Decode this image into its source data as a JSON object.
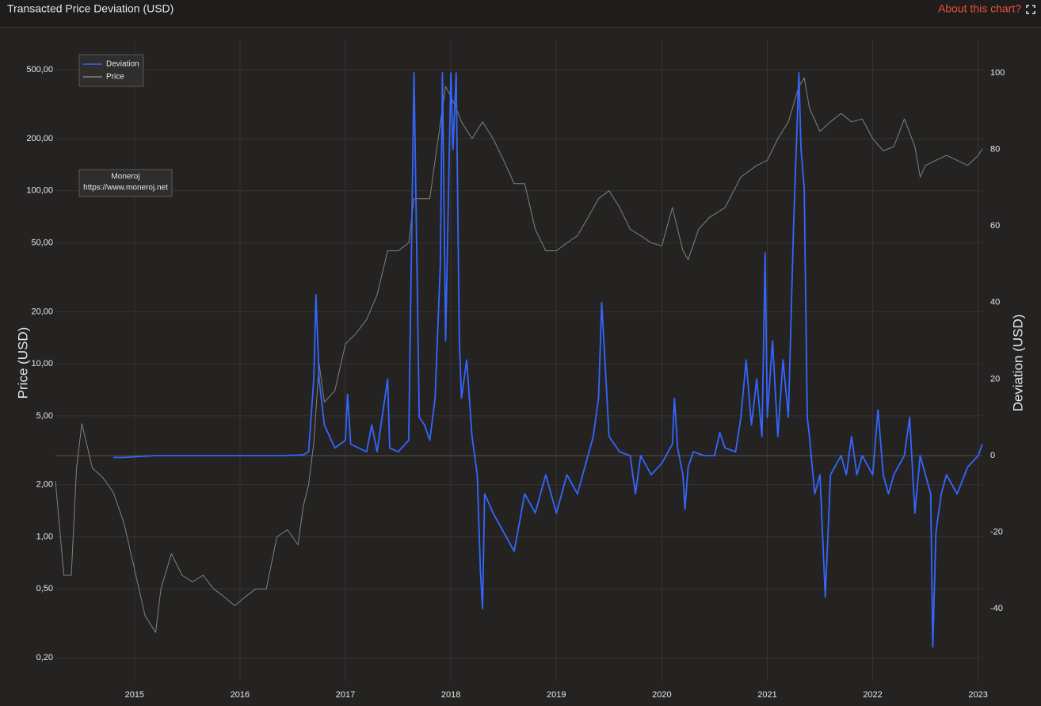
{
  "chart_data": {
    "type": "line",
    "title": "Transacted Price Deviation (USD)",
    "link_text": "About this chart?",
    "y_label": "Price (USD)",
    "y2_label": "Deviation (USD)",
    "annotation": [
      "Moneroj",
      "https://www.moneroj.net"
    ],
    "log_y": true,
    "grid": true,
    "legend": "top-left",
    "xlim": [
      2014.25,
      2023.04
    ],
    "xticks": [
      2015,
      2016,
      2017,
      2018,
      2019,
      2020,
      2021,
      2022,
      2023
    ],
    "ylim": [
      0.146,
      747
    ],
    "yticks": [
      {
        "value": 0.2,
        "label": "0,20"
      },
      {
        "value": 0.5,
        "label": "0,50"
      },
      {
        "value": 1,
        "label": "1,00"
      },
      {
        "value": 2,
        "label": "2,00"
      },
      {
        "value": 5,
        "label": "5,00"
      },
      {
        "value": 10,
        "label": "10,00"
      },
      {
        "value": 20,
        "label": "20,00"
      },
      {
        "value": 50,
        "label": "50,00"
      },
      {
        "value": 100,
        "label": "100,00"
      },
      {
        "value": 200,
        "label": "200,00"
      },
      {
        "value": 500,
        "label": "500,00"
      }
    ],
    "y2lim": [
      -59,
      108.7
    ],
    "y2ticks": [
      -40,
      -20,
      0,
      20,
      40,
      60,
      80,
      100
    ],
    "series": [
      {
        "name": "Deviation",
        "color": "#3366ff",
        "axis": "y2",
        "x": [
          2014.8,
          2014.9,
          2015.0,
          2015.2,
          2015.6,
          2016.0,
          2016.4,
          2016.6,
          2016.65,
          2016.7,
          2016.72,
          2016.75,
          2016.8,
          2016.9,
          2017.0,
          2017.02,
          2017.05,
          2017.2,
          2017.25,
          2017.3,
          2017.4,
          2017.42,
          2017.5,
          2017.6,
          2017.65,
          2017.7,
          2017.75,
          2017.8,
          2017.85,
          2017.9,
          2017.92,
          2017.95,
          2018.0,
          2018.02,
          2018.05,
          2018.08,
          2018.1,
          2018.15,
          2018.2,
          2018.25,
          2018.28,
          2018.3,
          2018.32,
          2018.4,
          2018.5,
          2018.6,
          2018.7,
          2018.8,
          2018.9,
          2019.0,
          2019.1,
          2019.2,
          2019.3,
          2019.35,
          2019.4,
          2019.43,
          2019.46,
          2019.5,
          2019.6,
          2019.7,
          2019.75,
          2019.8,
          2019.9,
          2020.0,
          2020.1,
          2020.12,
          2020.15,
          2020.2,
          2020.22,
          2020.25,
          2020.3,
          2020.4,
          2020.5,
          2020.55,
          2020.6,
          2020.7,
          2020.75,
          2020.8,
          2020.85,
          2020.9,
          2020.95,
          2020.98,
          2021.0,
          2021.05,
          2021.1,
          2021.15,
          2021.2,
          2021.25,
          2021.3,
          2021.32,
          2021.35,
          2021.38,
          2021.4,
          2021.45,
          2021.5,
          2021.55,
          2021.6,
          2021.7,
          2021.75,
          2021.8,
          2021.85,
          2021.9,
          2022.0,
          2022.05,
          2022.1,
          2022.15,
          2022.2,
          2022.3,
          2022.35,
          2022.4,
          2022.45,
          2022.5,
          2022.55,
          2022.57,
          2022.6,
          2022.65,
          2022.7,
          2022.8,
          2022.9,
          2023.0,
          2023.04
        ],
        "values": [
          -0.5,
          -0.5,
          -0.3,
          0,
          0,
          0,
          0,
          0.2,
          1,
          20,
          42,
          20,
          8,
          2,
          4,
          16,
          3,
          1,
          8,
          1,
          20,
          2,
          1,
          4,
          100,
          10,
          8,
          4,
          15,
          50,
          100,
          30,
          100,
          80,
          100,
          30,
          15,
          25,
          5,
          -5,
          -30,
          -40,
          -10,
          -15,
          -20,
          -25,
          -10,
          -15,
          -5,
          -15,
          -5,
          -10,
          0,
          5,
          15,
          40,
          25,
          5,
          1,
          0,
          -10,
          0,
          -5,
          -2,
          3,
          15,
          2,
          -5,
          -14,
          -3,
          1,
          0,
          0,
          6,
          2,
          1,
          10,
          25,
          8,
          20,
          5,
          53,
          10,
          30,
          5,
          25,
          10,
          60,
          100,
          80,
          70,
          10,
          5,
          -10,
          -5,
          -37,
          -5,
          0,
          -5,
          5,
          -5,
          0,
          -5,
          12,
          -5,
          -10,
          -5,
          0,
          10,
          -15,
          0,
          -5,
          -10,
          -50,
          -20,
          -10,
          -5,
          -10,
          -3,
          0,
          3
        ]
      },
      {
        "name": "Price",
        "color": "#808080",
        "x": [
          2014.25,
          2014.33,
          2014.4,
          2014.45,
          2014.5,
          2014.6,
          2014.7,
          2014.8,
          2014.9,
          2015.0,
          2015.1,
          2015.2,
          2015.25,
          2015.35,
          2015.45,
          2015.55,
          2015.65,
          2015.75,
          2015.85,
          2015.95,
          2016.05,
          2016.15,
          2016.25,
          2016.35,
          2016.45,
          2016.55,
          2016.6,
          2016.65,
          2016.7,
          2016.75,
          2016.8,
          2016.9,
          2017.0,
          2017.1,
          2017.2,
          2017.3,
          2017.4,
          2017.5,
          2017.6,
          2017.65,
          2017.7,
          2017.8,
          2017.85,
          2017.95,
          2018.0,
          2018.05,
          2018.1,
          2018.2,
          2018.3,
          2018.4,
          2018.5,
          2018.6,
          2018.7,
          2018.8,
          2018.9,
          2019.0,
          2019.1,
          2019.2,
          2019.3,
          2019.4,
          2019.5,
          2019.6,
          2019.7,
          2019.8,
          2019.9,
          2020.0,
          2020.1,
          2020.2,
          2020.25,
          2020.35,
          2020.45,
          2020.6,
          2020.75,
          2020.9,
          2021.0,
          2021.1,
          2021.2,
          2021.3,
          2021.35,
          2021.4,
          2021.5,
          2021.6,
          2021.7,
          2021.8,
          2021.9,
          2022.0,
          2022.1,
          2022.2,
          2022.3,
          2022.4,
          2022.45,
          2022.5,
          2022.6,
          2022.7,
          2022.8,
          2022.9,
          2023.0,
          2023.04
        ],
        "values": [
          2.1,
          0.6,
          0.6,
          2.5,
          4.5,
          2.5,
          2.2,
          1.8,
          1.2,
          0.65,
          0.35,
          0.28,
          0.5,
          0.8,
          0.6,
          0.55,
          0.6,
          0.5,
          0.45,
          0.4,
          0.45,
          0.5,
          0.5,
          1.0,
          1.1,
          0.9,
          1.5,
          2.0,
          3.5,
          10,
          6,
          7,
          13,
          15,
          18,
          25,
          45,
          45,
          50,
          90,
          90,
          90,
          150,
          400,
          350,
          300,
          250,
          200,
          250,
          200,
          150,
          110,
          110,
          60,
          45,
          45,
          50,
          55,
          70,
          90,
          100,
          80,
          60,
          55,
          50,
          48,
          80,
          45,
          40,
          60,
          70,
          80,
          120,
          140,
          150,
          200,
          250,
          400,
          450,
          300,
          220,
          250,
          280,
          250,
          260,
          200,
          170,
          180,
          260,
          180,
          120,
          140,
          150,
          160,
          150,
          140,
          160,
          175
        ]
      }
    ]
  }
}
